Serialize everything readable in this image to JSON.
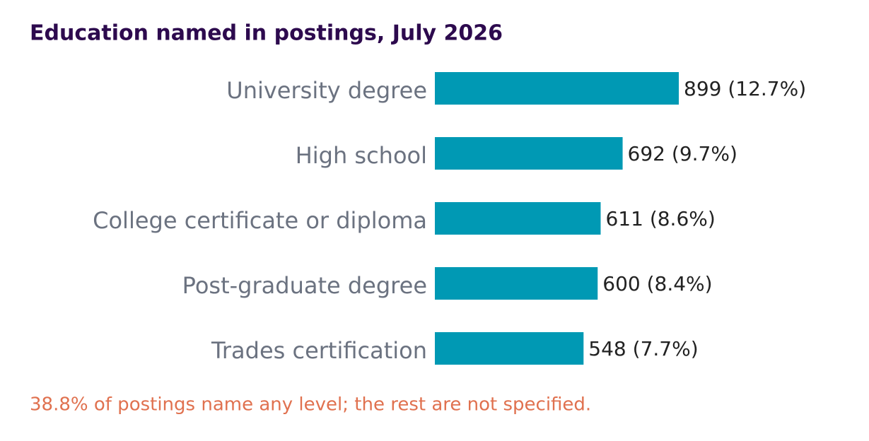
{
  "chart_data": {
    "type": "bar",
    "orientation": "horizontal",
    "title": "Education named in postings, July 2026",
    "categories": [
      "University degree",
      "High school",
      "College certificate or diploma",
      "Post-graduate degree",
      "Trades certification"
    ],
    "values": [
      899,
      692,
      611,
      600,
      548
    ],
    "value_labels": [
      "899  (12.7%)",
      "692  (9.7%)",
      "611  (8.6%)",
      "600  (8.4%)",
      "548  (7.7%)"
    ],
    "color": "#0099b4",
    "note": "38.8% of postings name any level; the rest are not specified."
  }
}
